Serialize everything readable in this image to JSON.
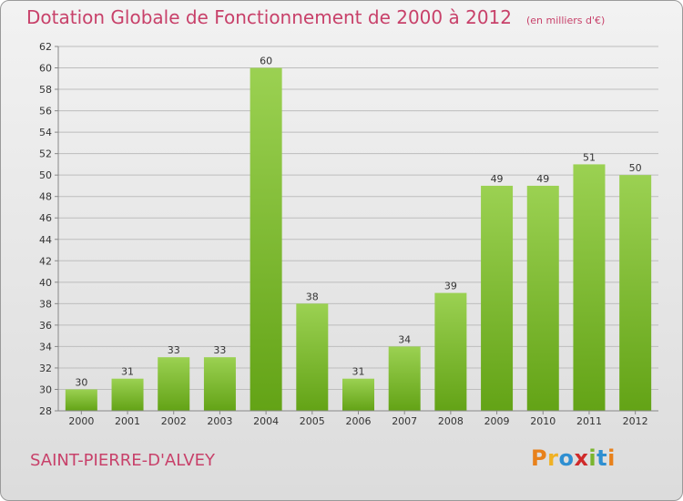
{
  "header": {
    "title": "Dotation Globale de Fonctionnement de 2000 à 2012",
    "unit": "(en milliers d'€)"
  },
  "footer": {
    "commune": "SAINT-PIERRE-D'ALVEY",
    "logo_letters": [
      "P",
      "r",
      "o",
      "x",
      "i",
      "t",
      "i"
    ],
    "logo_colors": [
      "#e8811b",
      "#f0b124",
      "#2f8fd1",
      "#cf2a2a",
      "#7ab52e",
      "#2f8fd1",
      "#e8811b"
    ]
  },
  "chart_data": {
    "type": "bar",
    "categories": [
      "2000",
      "2001",
      "2002",
      "2003",
      "2004",
      "2005",
      "2006",
      "2007",
      "2008",
      "2009",
      "2010",
      "2011",
      "2012"
    ],
    "values": [
      30,
      31,
      33,
      33,
      60,
      38,
      31,
      34,
      39,
      49,
      49,
      51,
      50
    ],
    "ylim": [
      28,
      62
    ],
    "yticks": [
      28,
      30,
      32,
      34,
      36,
      38,
      40,
      42,
      44,
      46,
      48,
      50,
      52,
      54,
      56,
      58,
      60,
      62
    ],
    "grid": true,
    "colors": {
      "bar_top": "#9bd152",
      "bar_bottom": "#63a316",
      "grid": "#bdbdbd"
    }
  }
}
